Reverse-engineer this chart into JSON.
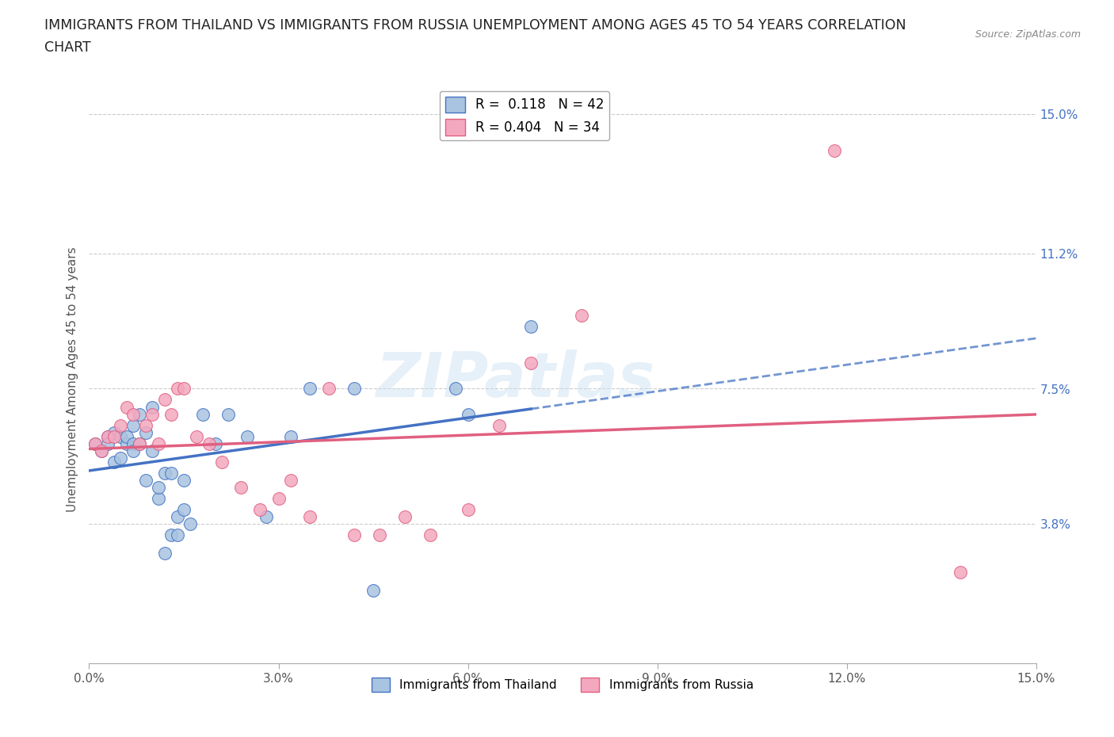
{
  "title_line1": "IMMIGRANTS FROM THAILAND VS IMMIGRANTS FROM RUSSIA UNEMPLOYMENT AMONG AGES 45 TO 54 YEARS CORRELATION",
  "title_line2": "CHART",
  "source": "Source: ZipAtlas.com",
  "ylabel": "Unemployment Among Ages 45 to 54 years",
  "xlim": [
    0.0,
    0.15
  ],
  "ylim": [
    0.0,
    0.155
  ],
  "xtick_vals": [
    0.0,
    0.03,
    0.06,
    0.09,
    0.12,
    0.15
  ],
  "ytick_right_vals": [
    0.038,
    0.075,
    0.112,
    0.15
  ],
  "ytick_right_labels": [
    "3.8%",
    "7.5%",
    "11.2%",
    "15.0%"
  ],
  "xtick_labels": [
    "0.0%",
    "3.0%",
    "6.0%",
    "9.0%",
    "12.0%",
    "15.0%"
  ],
  "R_thailand": 0.118,
  "N_thailand": 42,
  "R_russia": 0.404,
  "N_russia": 34,
  "color_thailand": "#a8c4e0",
  "color_russia": "#f4a8c0",
  "line_color_thailand": "#4472c4",
  "line_color_russia": "#e06080",
  "background_color": "#ffffff",
  "grid_color": "#cccccc",
  "watermark": "ZIPatlas",
  "thailand_x": [
    0.001,
    0.002,
    0.003,
    0.003,
    0.004,
    0.004,
    0.005,
    0.005,
    0.006,
    0.006,
    0.007,
    0.007,
    0.007,
    0.008,
    0.008,
    0.009,
    0.009,
    0.01,
    0.01,
    0.011,
    0.011,
    0.012,
    0.012,
    0.013,
    0.013,
    0.014,
    0.014,
    0.015,
    0.015,
    0.016,
    0.018,
    0.02,
    0.022,
    0.025,
    0.028,
    0.032,
    0.035,
    0.042,
    0.045,
    0.058,
    0.06,
    0.07
  ],
  "thailand_y": [
    0.06,
    0.058,
    0.062,
    0.06,
    0.063,
    0.055,
    0.062,
    0.056,
    0.06,
    0.062,
    0.06,
    0.065,
    0.058,
    0.068,
    0.06,
    0.063,
    0.05,
    0.07,
    0.058,
    0.045,
    0.048,
    0.03,
    0.052,
    0.035,
    0.052,
    0.04,
    0.035,
    0.05,
    0.042,
    0.038,
    0.068,
    0.06,
    0.068,
    0.062,
    0.04,
    0.062,
    0.075,
    0.075,
    0.02,
    0.075,
    0.068,
    0.092
  ],
  "russia_x": [
    0.001,
    0.002,
    0.003,
    0.004,
    0.005,
    0.006,
    0.007,
    0.008,
    0.009,
    0.01,
    0.011,
    0.012,
    0.013,
    0.014,
    0.015,
    0.017,
    0.019,
    0.021,
    0.024,
    0.027,
    0.03,
    0.032,
    0.035,
    0.038,
    0.042,
    0.046,
    0.05,
    0.054,
    0.06,
    0.065,
    0.07,
    0.078,
    0.118,
    0.138
  ],
  "russia_y": [
    0.06,
    0.058,
    0.062,
    0.062,
    0.065,
    0.07,
    0.068,
    0.06,
    0.065,
    0.068,
    0.06,
    0.072,
    0.068,
    0.075,
    0.075,
    0.062,
    0.06,
    0.055,
    0.048,
    0.042,
    0.045,
    0.05,
    0.04,
    0.075,
    0.035,
    0.035,
    0.04,
    0.035,
    0.042,
    0.065,
    0.082,
    0.095,
    0.14,
    0.025
  ]
}
